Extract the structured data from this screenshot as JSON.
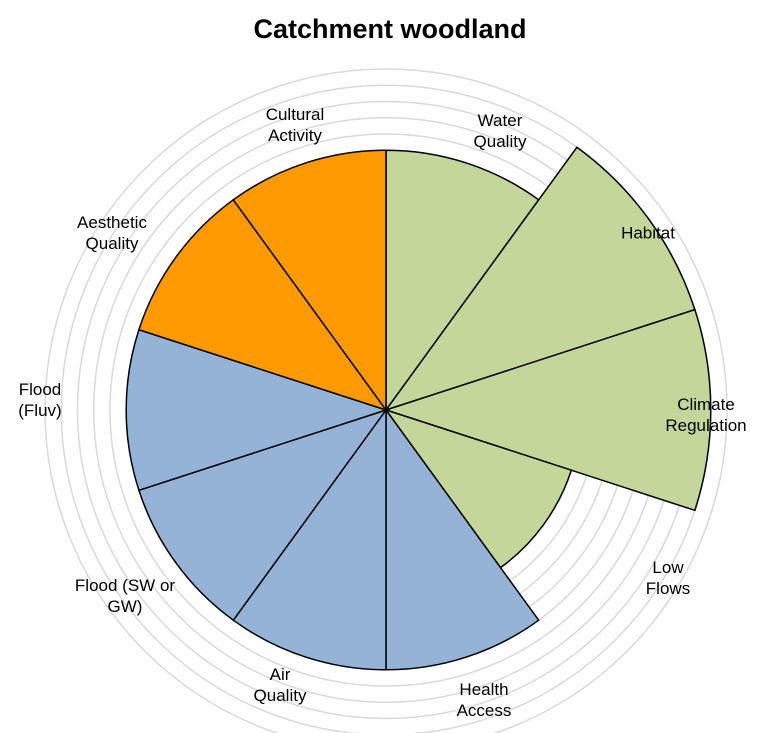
{
  "chart_data": {
    "type": "polar_area",
    "title": "Catchment woodland",
    "categories": [
      "Water Quality",
      "Habitat",
      "Climate Regulation",
      "Low Flows",
      "Health Access",
      "Air Quality",
      "Flood (SW or GW)",
      "Flood (Fluv)",
      "Aesthetic Quality",
      "Cultural Activity"
    ],
    "values": [
      4,
      5,
      5,
      3,
      4,
      4,
      4,
      4,
      4,
      4
    ],
    "colors": [
      "#c4d79b",
      "#c4d79b",
      "#c4d79b",
      "#c4d79b",
      "#95b3d7",
      "#95b3d7",
      "#95b3d7",
      "#95b3d7",
      "#ff9900",
      "#ff9900"
    ],
    "rlim": [
      0,
      5.25
    ],
    "rticks": [
      0.25,
      0.5,
      0.75,
      1,
      1.25,
      1.5,
      1.75,
      2,
      2.25,
      2.5,
      2.75,
      3,
      3.25,
      3.5,
      3.75,
      4,
      4.25,
      4.5,
      4.75,
      5,
      5.25
    ],
    "grid": true
  }
}
